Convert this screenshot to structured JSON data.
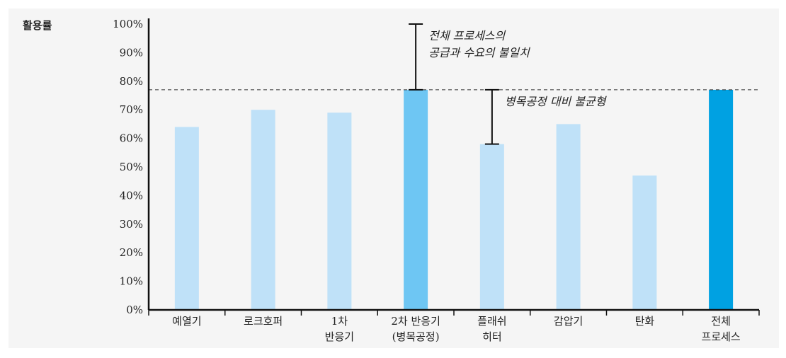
{
  "chart_data": {
    "type": "bar",
    "ylabel": "활용률",
    "ylim": [
      0,
      100
    ],
    "yticks": [
      "0%",
      "10%",
      "20%",
      "30%",
      "40%",
      "50%",
      "60%",
      "70%",
      "80%",
      "90%",
      "100%"
    ],
    "categories": [
      [
        "예열기"
      ],
      [
        "로크호퍼"
      ],
      [
        "1차",
        "반응기"
      ],
      [
        "2차 반응기",
        "(병목공정)"
      ],
      [
        "플래쉬",
        "히터"
      ],
      [
        "감압기"
      ],
      [
        "탄화"
      ],
      [
        "전체",
        "프로세스"
      ]
    ],
    "values": [
      64,
      70,
      69,
      77,
      58,
      65,
      47,
      77
    ],
    "bar_colors": [
      "#bfe1f8",
      "#bfe1f8",
      "#bfe1f8",
      "#6ec6f3",
      "#bfe1f8",
      "#bfe1f8",
      "#bfe1f8",
      "#00a1e2"
    ],
    "reference_line": {
      "value": 77,
      "style": "dashed"
    },
    "annotations": [
      {
        "lines": [
          "전체 프로세스의",
          "공급과 수요의 불일치"
        ],
        "from": 77,
        "to": 100,
        "category_index": 3
      },
      {
        "lines": [
          "병목공정 대비 불균형"
        ],
        "from": 58,
        "to": 77,
        "category_index": 4
      }
    ],
    "grid": false
  }
}
